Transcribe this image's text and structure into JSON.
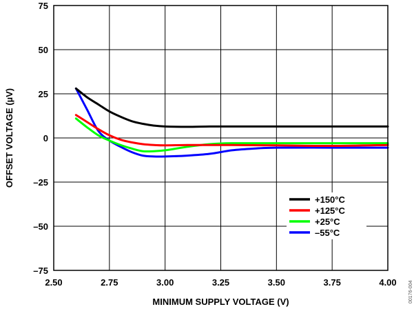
{
  "chart_data": {
    "type": "line",
    "title": "",
    "xlabel": "MINIMUM SUPPLY VOLTAGE (V)",
    "ylabel": "OFFSET VOLTAGE (µV)",
    "xlim": [
      2.5,
      4.0
    ],
    "ylim": [
      -75,
      75
    ],
    "x_ticks": [
      2.5,
      2.75,
      3.0,
      3.25,
      3.5,
      3.75,
      4.0
    ],
    "x_tick_labels": [
      "2.50",
      "2.75",
      "3.00",
      "3.25",
      "3.50",
      "3.75",
      "4.00"
    ],
    "y_ticks": [
      -75,
      -50,
      -25,
      0,
      25,
      50,
      75
    ],
    "y_tick_labels": [
      "–75",
      "–50",
      "–25",
      "0",
      "25",
      "50",
      "75"
    ],
    "grid": true,
    "legend_position": "bottom-right",
    "figure_id": "00176-004",
    "series": [
      {
        "name": "+150°C",
        "color": "#000000",
        "points": [
          [
            2.6,
            28
          ],
          [
            2.65,
            23
          ],
          [
            2.7,
            19
          ],
          [
            2.75,
            15
          ],
          [
            2.8,
            12
          ],
          [
            2.85,
            9.5
          ],
          [
            2.9,
            8
          ],
          [
            2.95,
            7
          ],
          [
            3.0,
            6.5
          ],
          [
            3.1,
            6.3
          ],
          [
            3.2,
            6.5
          ],
          [
            3.3,
            6.5
          ],
          [
            3.5,
            6.5
          ],
          [
            3.75,
            6.5
          ],
          [
            4.0,
            6.5
          ]
        ]
      },
      {
        "name": "+125°C",
        "color": "#ff0000",
        "points": [
          [
            2.6,
            13
          ],
          [
            2.65,
            9
          ],
          [
            2.7,
            5
          ],
          [
            2.75,
            1.5
          ],
          [
            2.8,
            -1
          ],
          [
            2.85,
            -2.5
          ],
          [
            2.9,
            -3.5
          ],
          [
            2.95,
            -4
          ],
          [
            3.0,
            -4.2
          ],
          [
            3.1,
            -4.0
          ],
          [
            3.2,
            -4
          ],
          [
            3.3,
            -4
          ],
          [
            3.5,
            -4.2
          ],
          [
            3.75,
            -4.5
          ],
          [
            4.0,
            -4
          ]
        ]
      },
      {
        "name": "+25°C",
        "color": "#00ff00",
        "points": [
          [
            2.6,
            11
          ],
          [
            2.65,
            6
          ],
          [
            2.7,
            1.5
          ],
          [
            2.75,
            -1.5
          ],
          [
            2.8,
            -4
          ],
          [
            2.85,
            -6
          ],
          [
            2.9,
            -7.5
          ],
          [
            2.95,
            -7.5
          ],
          [
            3.0,
            -7
          ],
          [
            3.1,
            -5
          ],
          [
            3.2,
            -3.5
          ],
          [
            3.3,
            -3
          ],
          [
            3.5,
            -3
          ],
          [
            3.75,
            -3
          ],
          [
            4.0,
            -3
          ]
        ]
      },
      {
        "name": "–55°C",
        "color": "#0000ff",
        "points": [
          [
            2.6,
            28
          ],
          [
            2.65,
            16
          ],
          [
            2.7,
            4
          ],
          [
            2.75,
            -1.5
          ],
          [
            2.8,
            -5
          ],
          [
            2.85,
            -8
          ],
          [
            2.9,
            -10
          ],
          [
            2.95,
            -10.5
          ],
          [
            3.0,
            -10.5
          ],
          [
            3.1,
            -10
          ],
          [
            3.2,
            -9
          ],
          [
            3.3,
            -7
          ],
          [
            3.4,
            -6
          ],
          [
            3.5,
            -5.5
          ],
          [
            3.75,
            -5.5
          ],
          [
            4.0,
            -5.5
          ]
        ]
      }
    ]
  }
}
